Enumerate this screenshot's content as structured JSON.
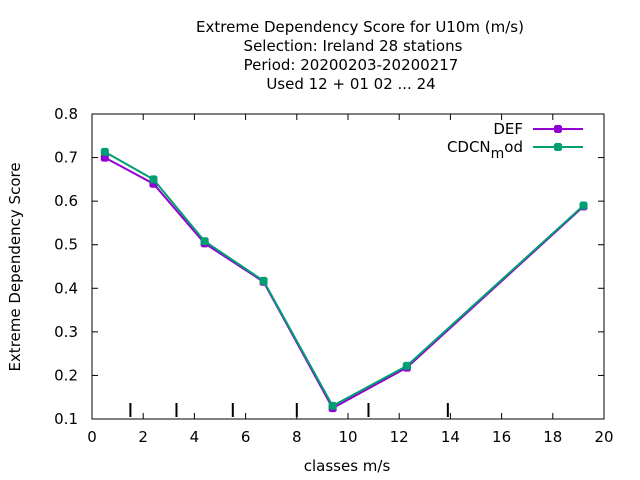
{
  "chart_data": {
    "type": "line",
    "title_lines": [
      "Extreme Dependency Score  for U10m (m/s)",
      "Selection: Ireland      28 stations",
      "Period: 20200203-20200217",
      "Used  12 + 01 02 ... 24"
    ],
    "xlabel": "classes m/s",
    "ylabel": "Extreme Dependency Score",
    "xlim": [
      0,
      20
    ],
    "ylim": [
      0.1,
      0.8
    ],
    "x_ticks": [
      0,
      2,
      4,
      6,
      8,
      10,
      12,
      14,
      16,
      18,
      20
    ],
    "y_ticks": [
      0.1,
      0.2,
      0.3,
      0.4,
      0.5,
      0.6,
      0.7,
      0.8
    ],
    "class_markers": [
      1.5,
      3.3,
      5.5,
      8.0,
      10.8,
      13.9
    ],
    "grid": false,
    "legend_position": "top-right",
    "series": [
      {
        "name": "DEF",
        "color": "#9400d3",
        "x": [
          0.5,
          2.4,
          4.4,
          6.7,
          9.4,
          12.3,
          19.2
        ],
        "y": [
          0.7,
          0.64,
          0.503,
          0.415,
          0.125,
          0.218,
          0.588
        ]
      },
      {
        "name_main": "CDCN",
        "name_sub": "m",
        "name_tail": "od",
        "color": "#009e73",
        "x": [
          0.5,
          2.4,
          4.4,
          6.7,
          9.4,
          12.3,
          19.2
        ],
        "y": [
          0.713,
          0.65,
          0.508,
          0.417,
          0.13,
          0.222,
          0.59
        ]
      }
    ]
  }
}
